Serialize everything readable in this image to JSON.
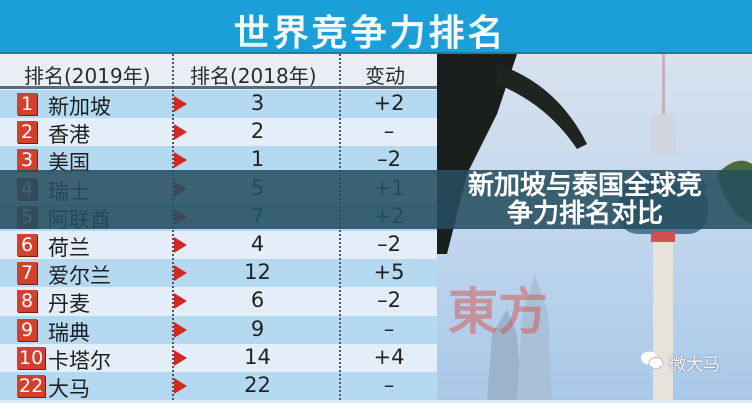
{
  "title": "世界竞争力排名",
  "banner": "新加坡与泰国全球竞争力排名对比",
  "table": {
    "headers": [
      "排名(2019年)",
      "排名(2018年)",
      "变动"
    ],
    "rows": [
      {
        "rank": "1",
        "country": "新加坡",
        "rank2018": "3",
        "change": "+2"
      },
      {
        "rank": "2",
        "country": "香港",
        "rank2018": "2",
        "change": "–"
      },
      {
        "rank": "3",
        "country": "美国",
        "rank2018": "1",
        "change": "–2"
      },
      {
        "rank": "4",
        "country": "瑞士",
        "rank2018": "5",
        "change": "+1"
      },
      {
        "rank": "5",
        "country": "阿联酋",
        "rank2018": "7",
        "change": "+2"
      },
      {
        "rank": "6",
        "country": "荷兰",
        "rank2018": "4",
        "change": "–2"
      },
      {
        "rank": "7",
        "country": "爱尔兰",
        "rank2018": "12",
        "change": "+5"
      },
      {
        "rank": "8",
        "country": "丹麦",
        "rank2018": "6",
        "change": "–2"
      },
      {
        "rank": "9",
        "country": "瑞典",
        "rank2018": "9",
        "change": "–"
      },
      {
        "rank": "10",
        "country": "卡塔尔",
        "rank2018": "14",
        "change": "+4"
      },
      {
        "rank": "22",
        "country": "大马",
        "rank2018": "22",
        "change": "–"
      }
    ]
  },
  "watermark": {
    "icon": "wechat-icon",
    "text": "微大马"
  },
  "logo_watermark": "東方",
  "colors": {
    "title_band": "#1a9fd8",
    "badge": "#d2402e",
    "arrow": "#d22a22",
    "banner": "#264e60"
  }
}
